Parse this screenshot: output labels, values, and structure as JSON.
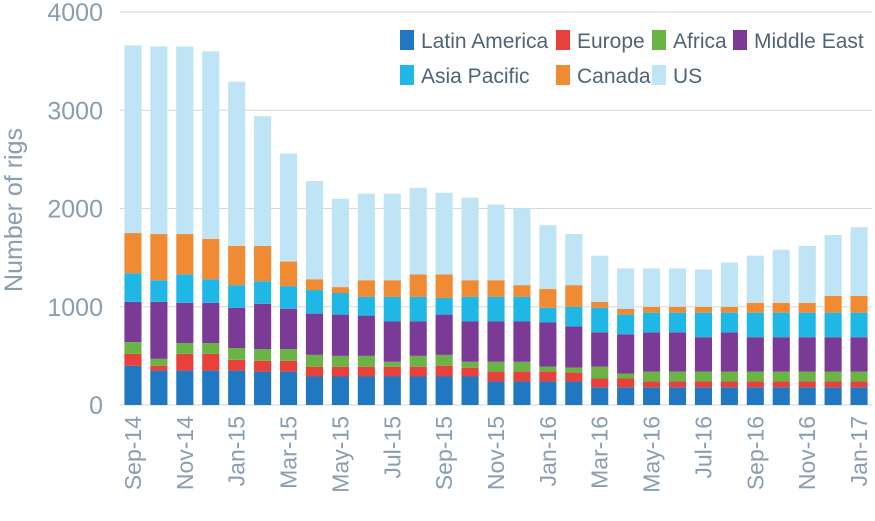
{
  "chart_data": {
    "type": "bar",
    "stacked": true,
    "title": "",
    "xlabel": "",
    "ylabel": "Number of rigs",
    "ylim": [
      0,
      4000
    ],
    "yticks": [
      0,
      1000,
      2000,
      3000,
      4000
    ],
    "grid": true,
    "legend_position": "top-right",
    "categories": [
      "Sep-14",
      "Oct-14",
      "Nov-14",
      "Dec-14",
      "Jan-15",
      "Feb-15",
      "Mar-15",
      "Apr-15",
      "May-15",
      "Jun-15",
      "Jul-15",
      "Aug-15",
      "Sep-15",
      "Oct-15",
      "Nov-15",
      "Dec-15",
      "Jan-16",
      "Feb-16",
      "Mar-16",
      "Apr-16",
      "May-16",
      "Jun-16",
      "Jul-16",
      "Aug-16",
      "Sep-16",
      "Oct-16",
      "Nov-16",
      "Dec-16",
      "Jan-17"
    ],
    "tick_labels": [
      "Sep-14",
      "Nov-14",
      "Jan-15",
      "Mar-15",
      "May-15",
      "Jul-15",
      "Sep-15",
      "Nov-15",
      "Jan-16",
      "Mar-16",
      "May-16",
      "Jul-16",
      "Sep-16",
      "Nov-16",
      "Jan-17"
    ],
    "series": [
      {
        "name": "Latin America",
        "color": "#1f78c1",
        "values": [
          400,
          350,
          350,
          350,
          350,
          340,
          340,
          290,
          290,
          290,
          290,
          290,
          290,
          290,
          240,
          240,
          240,
          240,
          180,
          180,
          180,
          180,
          180,
          180,
          180,
          180,
          180,
          180,
          180
        ]
      },
      {
        "name": "Europe",
        "color": "#e8403a",
        "values": [
          120,
          50,
          170,
          170,
          110,
          110,
          110,
          100,
          100,
          100,
          100,
          100,
          110,
          90,
          100,
          100,
          100,
          90,
          90,
          90,
          60,
          60,
          60,
          60,
          60,
          60,
          60,
          60,
          60
        ]
      },
      {
        "name": "Africa",
        "color": "#6ab445",
        "values": [
          120,
          70,
          110,
          110,
          120,
          120,
          120,
          120,
          110,
          110,
          50,
          110,
          110,
          60,
          100,
          100,
          50,
          50,
          120,
          50,
          100,
          100,
          100,
          100,
          100,
          100,
          100,
          100,
          100
        ]
      },
      {
        "name": "Middle East",
        "color": "#7a3a96",
        "values": [
          410,
          580,
          410,
          410,
          410,
          460,
          410,
          420,
          420,
          410,
          410,
          350,
          410,
          410,
          410,
          410,
          450,
          420,
          350,
          400,
          400,
          400,
          350,
          400,
          350,
          350,
          350,
          350,
          350
        ]
      },
      {
        "name": "Asia Pacific",
        "color": "#1fb8e6",
        "values": [
          290,
          220,
          290,
          240,
          230,
          230,
          230,
          240,
          220,
          190,
          250,
          250,
          170,
          250,
          250,
          250,
          150,
          200,
          250,
          200,
          200,
          200,
          250,
          200,
          250,
          250,
          250,
          250,
          250
        ]
      },
      {
        "name": "Canada",
        "color": "#f08a33",
        "values": [
          410,
          470,
          410,
          410,
          400,
          360,
          250,
          110,
          60,
          170,
          170,
          230,
          240,
          170,
          170,
          120,
          190,
          220,
          60,
          60,
          60,
          60,
          60,
          60,
          100,
          100,
          100,
          170,
          170
        ]
      },
      {
        "name": "US",
        "color": "#bfe4f5",
        "values": [
          1910,
          1910,
          1910,
          1910,
          1670,
          1320,
          1100,
          1000,
          900,
          880,
          880,
          880,
          830,
          840,
          770,
          780,
          650,
          520,
          470,
          410,
          390,
          390,
          380,
          450,
          480,
          540,
          580,
          620,
          700
        ]
      }
    ]
  }
}
